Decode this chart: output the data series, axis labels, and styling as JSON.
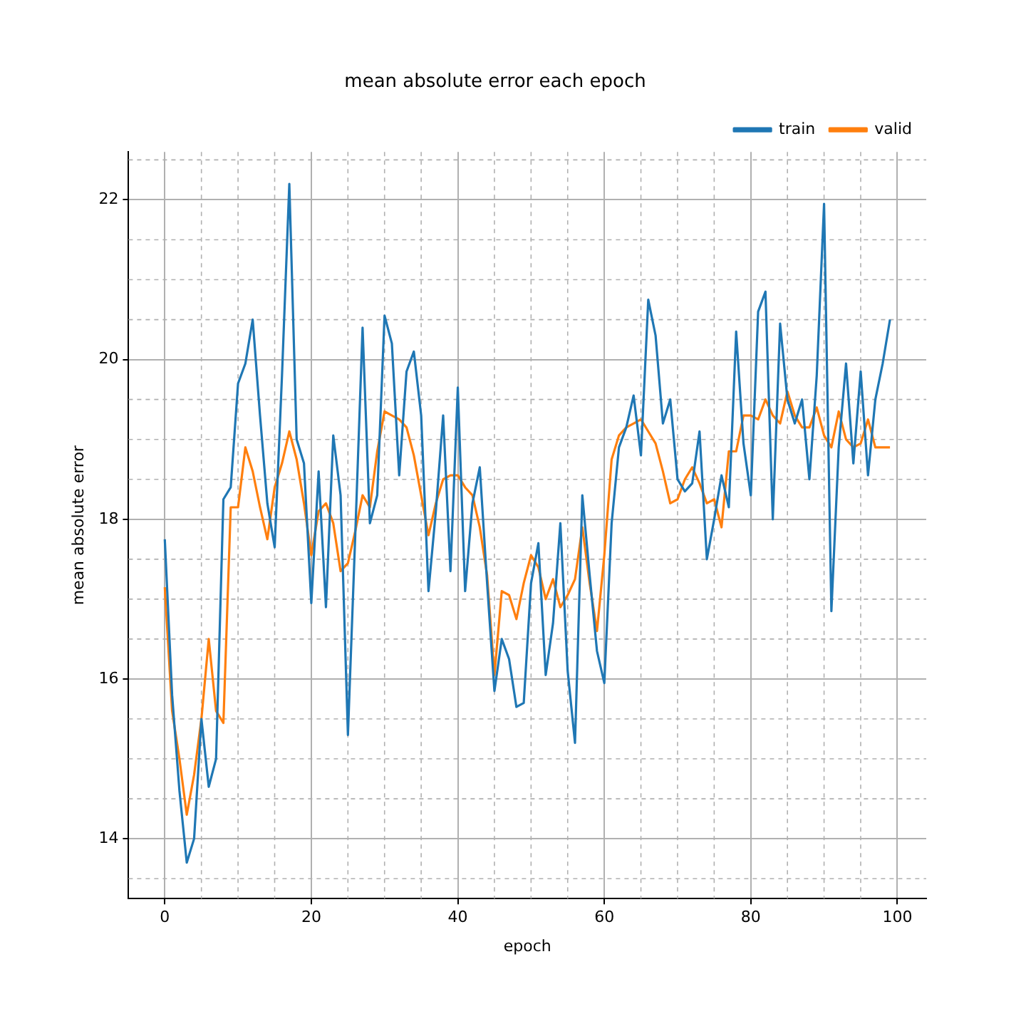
{
  "chart_data": {
    "type": "line",
    "title": "mean absolute error each epoch",
    "xlabel": "epoch",
    "ylabel": "mean absolute error",
    "x": [
      0,
      1,
      2,
      3,
      4,
      5,
      6,
      7,
      8,
      9,
      10,
      11,
      12,
      13,
      14,
      15,
      16,
      17,
      18,
      19,
      20,
      21,
      22,
      23,
      24,
      25,
      26,
      27,
      28,
      29,
      30,
      31,
      32,
      33,
      34,
      35,
      36,
      37,
      38,
      39,
      40,
      41,
      42,
      43,
      44,
      45,
      46,
      47,
      48,
      49,
      50,
      51,
      52,
      53,
      54,
      55,
      56,
      57,
      58,
      59,
      60,
      61,
      62,
      63,
      64,
      65,
      66,
      67,
      68,
      69,
      70,
      71,
      72,
      73,
      74,
      75,
      76,
      77,
      78,
      79,
      80,
      81,
      82,
      83,
      84,
      85,
      86,
      87,
      88,
      89,
      90,
      91,
      92,
      93,
      94,
      95,
      96,
      97,
      98,
      99
    ],
    "series": [
      {
        "name": "train",
        "color": "#1f77b4",
        "values": [
          17.75,
          15.8,
          14.6,
          13.7,
          14.0,
          15.5,
          14.65,
          15.0,
          18.25,
          18.4,
          19.7,
          19.95,
          20.5,
          19.3,
          18.2,
          17.65,
          19.8,
          22.2,
          19.0,
          18.7,
          16.95,
          18.6,
          16.9,
          19.05,
          18.3,
          15.3,
          17.8,
          20.4,
          17.95,
          18.3,
          20.55,
          20.2,
          18.55,
          19.85,
          20.1,
          19.3,
          17.1,
          18.1,
          19.3,
          17.35,
          19.65,
          17.1,
          18.2,
          18.65,
          17.2,
          15.85,
          16.5,
          16.25,
          15.65,
          15.7,
          17.2,
          17.7,
          16.05,
          16.7,
          17.95,
          16.1,
          15.2,
          18.3,
          17.3,
          16.35,
          15.95,
          17.95,
          18.9,
          19.15,
          19.55,
          18.8,
          20.75,
          20.3,
          19.2,
          19.5,
          18.5,
          18.35,
          18.45,
          19.1,
          17.5,
          18.0,
          18.55,
          18.15,
          20.35,
          18.95,
          18.3,
          20.6,
          20.85,
          18.0,
          20.45,
          19.5,
          19.2,
          19.5,
          18.5,
          19.8,
          21.95,
          16.85,
          18.9,
          19.95,
          18.7,
          19.85,
          18.55,
          19.5,
          19.95,
          20.5
        ]
      },
      {
        "name": "valid",
        "color": "#ff7f0e",
        "values": [
          17.15,
          15.6,
          15.0,
          14.3,
          14.8,
          15.5,
          16.5,
          15.6,
          15.45,
          18.15,
          18.15,
          18.9,
          18.6,
          18.15,
          17.75,
          18.4,
          18.7,
          19.1,
          18.75,
          18.2,
          17.55,
          18.1,
          18.2,
          17.95,
          17.35,
          17.45,
          17.85,
          18.3,
          18.15,
          18.85,
          19.35,
          19.3,
          19.25,
          19.15,
          18.8,
          18.3,
          17.8,
          18.2,
          18.5,
          18.55,
          18.55,
          18.4,
          18.3,
          17.9,
          17.3,
          16.05,
          17.1,
          17.05,
          16.75,
          17.2,
          17.55,
          17.4,
          17.0,
          17.25,
          16.9,
          17.05,
          17.25,
          17.9,
          17.2,
          16.6,
          17.55,
          18.75,
          19.05,
          19.15,
          19.2,
          19.25,
          19.1,
          18.95,
          18.6,
          18.2,
          18.25,
          18.5,
          18.65,
          18.45,
          18.2,
          18.25,
          17.9,
          18.85,
          18.85,
          19.3,
          19.3,
          19.25,
          19.5,
          19.3,
          19.2,
          19.6,
          19.3,
          19.15,
          19.15,
          19.4,
          19.05,
          18.9,
          19.35,
          19.0,
          18.9,
          18.95,
          19.25,
          18.9,
          18.9,
          18.9
        ]
      }
    ],
    "xlim": [
      -4.95,
      103.95
    ],
    "ylim": [
      13.25,
      22.6
    ],
    "xticks": [
      0,
      20,
      40,
      60,
      80,
      100
    ],
    "yticks": [
      14,
      16,
      18,
      20,
      22
    ],
    "grid": true,
    "legend": "top right"
  }
}
